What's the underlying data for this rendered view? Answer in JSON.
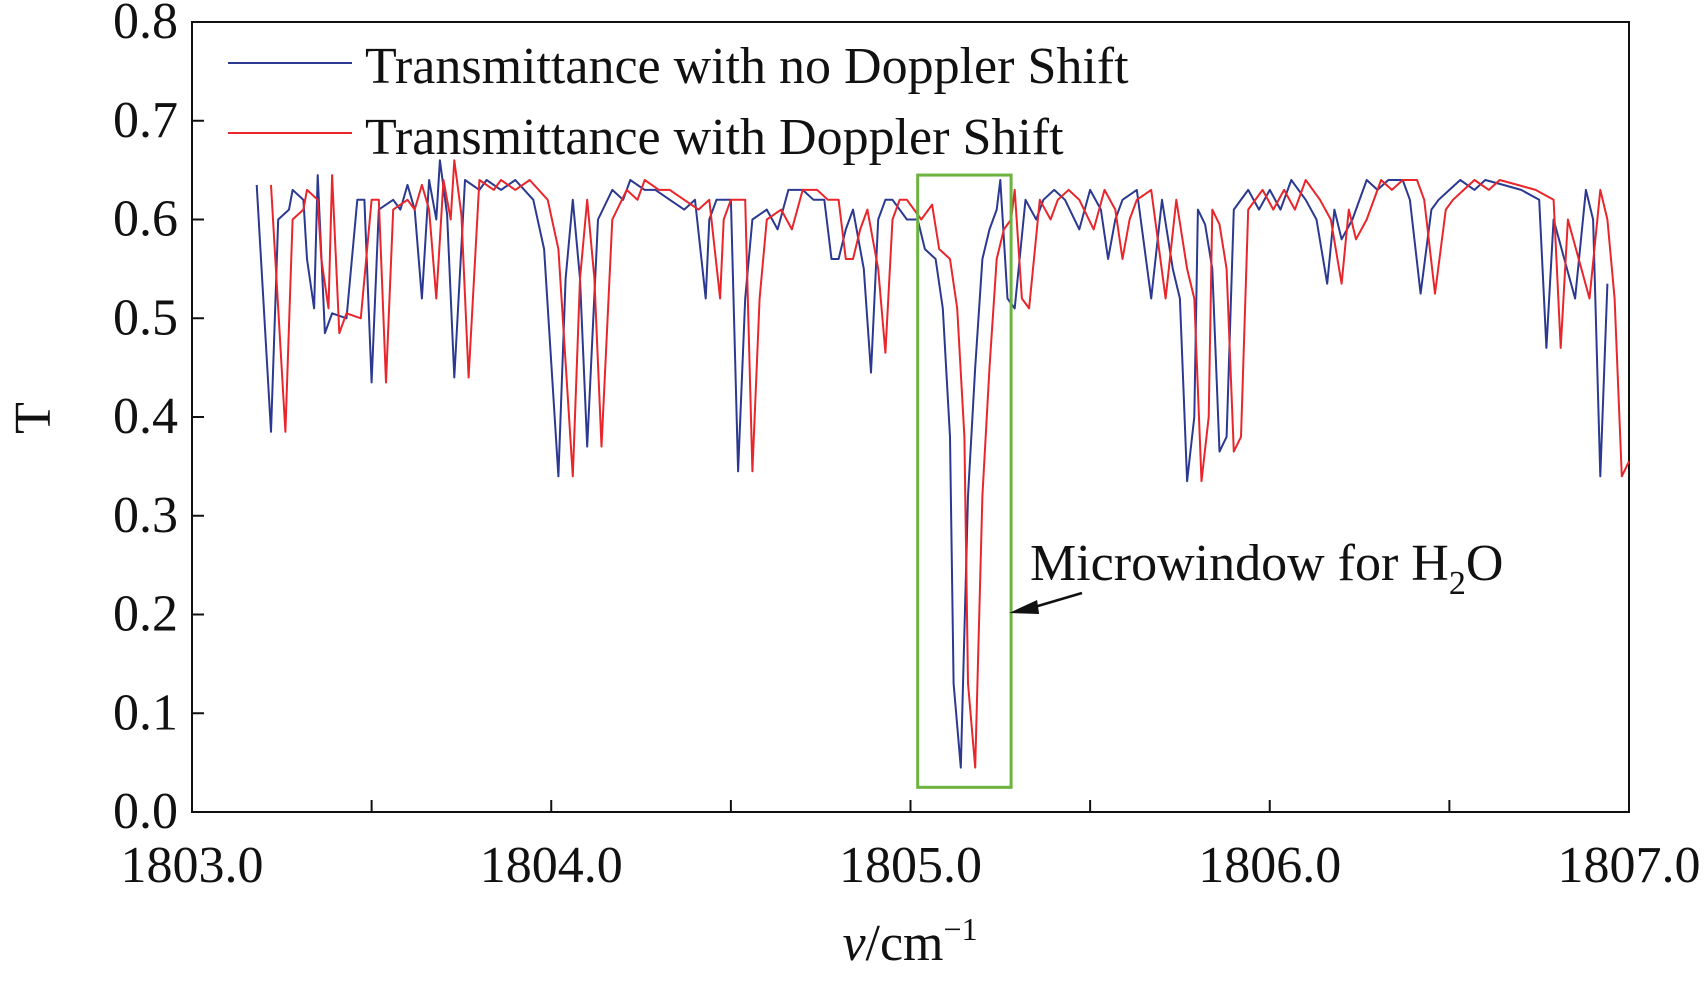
{
  "chart_data": {
    "type": "line",
    "xlabel": "v/cm",
    "xlabel_superscript": "−1",
    "ylabel": "T",
    "xlim": [
      1803.0,
      1807.0
    ],
    "ylim": [
      0.0,
      0.8
    ],
    "x_ticks": [
      "1803.0",
      "1804.0",
      "1805.0",
      "1806.0",
      "1807.0"
    ],
    "y_ticks": [
      "0.0",
      "0.1",
      "0.2",
      "0.3",
      "0.4",
      "0.5",
      "0.6",
      "0.7",
      "0.8"
    ],
    "legend_position": "top-left",
    "grid": false,
    "series": [
      {
        "name": "Transmittance with no Doppler Shift",
        "color": "#2b3990",
        "points": [
          [
            1803.18,
            0.635
          ],
          [
            1803.22,
            0.385
          ],
          [
            1803.24,
            0.6
          ],
          [
            1803.27,
            0.61
          ],
          [
            1803.28,
            0.63
          ],
          [
            1803.31,
            0.62
          ],
          [
            1803.32,
            0.56
          ],
          [
            1803.34,
            0.51
          ],
          [
            1803.35,
            0.645
          ],
          [
            1803.37,
            0.485
          ],
          [
            1803.39,
            0.505
          ],
          [
            1803.43,
            0.5
          ],
          [
            1803.46,
            0.62
          ],
          [
            1803.48,
            0.62
          ],
          [
            1803.5,
            0.435
          ],
          [
            1803.52,
            0.61
          ],
          [
            1803.56,
            0.62
          ],
          [
            1803.58,
            0.61
          ],
          [
            1803.6,
            0.635
          ],
          [
            1803.62,
            0.61
          ],
          [
            1803.64,
            0.52
          ],
          [
            1803.66,
            0.64
          ],
          [
            1803.68,
            0.6
          ],
          [
            1803.69,
            0.66
          ],
          [
            1803.71,
            0.605
          ],
          [
            1803.73,
            0.44
          ],
          [
            1803.76,
            0.64
          ],
          [
            1803.8,
            0.63
          ],
          [
            1803.82,
            0.64
          ],
          [
            1803.86,
            0.63
          ],
          [
            1803.9,
            0.64
          ],
          [
            1803.95,
            0.62
          ],
          [
            1803.98,
            0.57
          ],
          [
            1804.02,
            0.34
          ],
          [
            1804.04,
            0.54
          ],
          [
            1804.06,
            0.62
          ],
          [
            1804.08,
            0.54
          ],
          [
            1804.1,
            0.37
          ],
          [
            1804.13,
            0.6
          ],
          [
            1804.17,
            0.63
          ],
          [
            1804.2,
            0.62
          ],
          [
            1804.22,
            0.64
          ],
          [
            1804.26,
            0.63
          ],
          [
            1804.29,
            0.63
          ],
          [
            1804.33,
            0.62
          ],
          [
            1804.37,
            0.61
          ],
          [
            1804.4,
            0.62
          ],
          [
            1804.43,
            0.52
          ],
          [
            1804.44,
            0.6
          ],
          [
            1804.46,
            0.62
          ],
          [
            1804.5,
            0.62
          ],
          [
            1804.52,
            0.345
          ],
          [
            1804.54,
            0.52
          ],
          [
            1804.56,
            0.6
          ],
          [
            1804.6,
            0.61
          ],
          [
            1804.63,
            0.59
          ],
          [
            1804.66,
            0.63
          ],
          [
            1804.7,
            0.63
          ],
          [
            1804.73,
            0.62
          ],
          [
            1804.76,
            0.62
          ],
          [
            1804.78,
            0.56
          ],
          [
            1804.8,
            0.56
          ],
          [
            1804.82,
            0.59
          ],
          [
            1804.84,
            0.61
          ],
          [
            1804.87,
            0.55
          ],
          [
            1804.89,
            0.445
          ],
          [
            1804.91,
            0.6
          ],
          [
            1804.93,
            0.62
          ],
          [
            1804.95,
            0.62
          ],
          [
            1804.99,
            0.6
          ],
          [
            1805.02,
            0.6
          ],
          [
            1805.04,
            0.57
          ],
          [
            1805.07,
            0.56
          ],
          [
            1805.09,
            0.51
          ],
          [
            1805.11,
            0.38
          ],
          [
            1805.12,
            0.13
          ],
          [
            1805.14,
            0.045
          ],
          [
            1805.16,
            0.32
          ],
          [
            1805.18,
            0.45
          ],
          [
            1805.2,
            0.56
          ],
          [
            1805.22,
            0.59
          ],
          [
            1805.24,
            0.61
          ],
          [
            1805.25,
            0.64
          ],
          [
            1805.27,
            0.52
          ],
          [
            1805.29,
            0.51
          ],
          [
            1805.32,
            0.62
          ],
          [
            1805.35,
            0.6
          ],
          [
            1805.37,
            0.62
          ],
          [
            1805.4,
            0.63
          ],
          [
            1805.43,
            0.62
          ],
          [
            1805.47,
            0.59
          ],
          [
            1805.5,
            0.63
          ],
          [
            1805.53,
            0.61
          ],
          [
            1805.55,
            0.56
          ],
          [
            1805.57,
            0.6
          ],
          [
            1805.59,
            0.62
          ],
          [
            1805.63,
            0.63
          ],
          [
            1805.67,
            0.52
          ],
          [
            1805.7,
            0.62
          ],
          [
            1805.73,
            0.55
          ],
          [
            1805.75,
            0.52
          ],
          [
            1805.77,
            0.335
          ],
          [
            1805.79,
            0.4
          ],
          [
            1805.8,
            0.61
          ],
          [
            1805.82,
            0.595
          ],
          [
            1805.84,
            0.55
          ],
          [
            1805.86,
            0.365
          ],
          [
            1805.88,
            0.38
          ],
          [
            1805.9,
            0.61
          ],
          [
            1805.94,
            0.63
          ],
          [
            1805.97,
            0.61
          ],
          [
            1806.0,
            0.63
          ],
          [
            1806.03,
            0.61
          ],
          [
            1806.06,
            0.64
          ],
          [
            1806.1,
            0.62
          ],
          [
            1806.13,
            0.6
          ],
          [
            1806.16,
            0.535
          ],
          [
            1806.18,
            0.61
          ],
          [
            1806.2,
            0.58
          ],
          [
            1806.23,
            0.6
          ],
          [
            1806.27,
            0.64
          ],
          [
            1806.3,
            0.63
          ],
          [
            1806.33,
            0.64
          ],
          [
            1806.37,
            0.64
          ],
          [
            1806.39,
            0.62
          ],
          [
            1806.42,
            0.525
          ],
          [
            1806.45,
            0.61
          ],
          [
            1806.47,
            0.62
          ],
          [
            1806.5,
            0.63
          ],
          [
            1806.53,
            0.64
          ],
          [
            1806.57,
            0.63
          ],
          [
            1806.6,
            0.64
          ],
          [
            1806.65,
            0.635
          ],
          [
            1806.7,
            0.63
          ],
          [
            1806.75,
            0.62
          ],
          [
            1806.77,
            0.47
          ],
          [
            1806.79,
            0.6
          ],
          [
            1806.82,
            0.56
          ],
          [
            1806.85,
            0.52
          ],
          [
            1806.88,
            0.63
          ],
          [
            1806.9,
            0.6
          ],
          [
            1806.92,
            0.34
          ],
          [
            1806.94,
            0.535
          ]
        ]
      },
      {
        "name": "Transmittance with Doppler Shift",
        "color": "#e8262b",
        "points": [
          [
            1803.22,
            0.635
          ],
          [
            1803.26,
            0.385
          ],
          [
            1803.28,
            0.6
          ],
          [
            1803.31,
            0.61
          ],
          [
            1803.32,
            0.63
          ],
          [
            1803.35,
            0.62
          ],
          [
            1803.36,
            0.56
          ],
          [
            1803.38,
            0.51
          ],
          [
            1803.39,
            0.645
          ],
          [
            1803.41,
            0.485
          ],
          [
            1803.43,
            0.505
          ],
          [
            1803.47,
            0.5
          ],
          [
            1803.5,
            0.62
          ],
          [
            1803.52,
            0.62
          ],
          [
            1803.54,
            0.435
          ],
          [
            1803.56,
            0.61
          ],
          [
            1803.6,
            0.62
          ],
          [
            1803.62,
            0.61
          ],
          [
            1803.64,
            0.635
          ],
          [
            1803.66,
            0.61
          ],
          [
            1803.68,
            0.52
          ],
          [
            1803.7,
            0.64
          ],
          [
            1803.72,
            0.6
          ],
          [
            1803.73,
            0.66
          ],
          [
            1803.75,
            0.605
          ],
          [
            1803.77,
            0.44
          ],
          [
            1803.8,
            0.64
          ],
          [
            1803.84,
            0.63
          ],
          [
            1803.86,
            0.64
          ],
          [
            1803.9,
            0.63
          ],
          [
            1803.94,
            0.64
          ],
          [
            1803.99,
            0.62
          ],
          [
            1804.02,
            0.57
          ],
          [
            1804.06,
            0.34
          ],
          [
            1804.08,
            0.54
          ],
          [
            1804.1,
            0.62
          ],
          [
            1804.12,
            0.54
          ],
          [
            1804.14,
            0.37
          ],
          [
            1804.17,
            0.6
          ],
          [
            1804.21,
            0.63
          ],
          [
            1804.24,
            0.62
          ],
          [
            1804.26,
            0.64
          ],
          [
            1804.3,
            0.63
          ],
          [
            1804.33,
            0.63
          ],
          [
            1804.37,
            0.62
          ],
          [
            1804.41,
            0.61
          ],
          [
            1804.44,
            0.62
          ],
          [
            1804.47,
            0.52
          ],
          [
            1804.48,
            0.6
          ],
          [
            1804.5,
            0.62
          ],
          [
            1804.54,
            0.62
          ],
          [
            1804.56,
            0.345
          ],
          [
            1804.58,
            0.52
          ],
          [
            1804.6,
            0.6
          ],
          [
            1804.64,
            0.61
          ],
          [
            1804.67,
            0.59
          ],
          [
            1804.7,
            0.63
          ],
          [
            1804.74,
            0.63
          ],
          [
            1804.77,
            0.62
          ],
          [
            1804.8,
            0.62
          ],
          [
            1804.82,
            0.56
          ],
          [
            1804.84,
            0.56
          ],
          [
            1804.86,
            0.59
          ],
          [
            1804.88,
            0.61
          ],
          [
            1804.91,
            0.55
          ],
          [
            1804.93,
            0.465
          ],
          [
            1804.95,
            0.6
          ],
          [
            1804.97,
            0.62
          ],
          [
            1804.99,
            0.62
          ],
          [
            1805.03,
            0.6
          ],
          [
            1805.06,
            0.615
          ],
          [
            1805.08,
            0.57
          ],
          [
            1805.11,
            0.56
          ],
          [
            1805.13,
            0.51
          ],
          [
            1805.15,
            0.38
          ],
          [
            1805.16,
            0.13
          ],
          [
            1805.18,
            0.045
          ],
          [
            1805.2,
            0.32
          ],
          [
            1805.22,
            0.45
          ],
          [
            1805.24,
            0.56
          ],
          [
            1805.26,
            0.59
          ],
          [
            1805.28,
            0.6
          ],
          [
            1805.29,
            0.63
          ],
          [
            1805.31,
            0.52
          ],
          [
            1805.33,
            0.51
          ],
          [
            1805.36,
            0.62
          ],
          [
            1805.39,
            0.6
          ],
          [
            1805.41,
            0.62
          ],
          [
            1805.44,
            0.63
          ],
          [
            1805.47,
            0.62
          ],
          [
            1805.51,
            0.59
          ],
          [
            1805.54,
            0.63
          ],
          [
            1805.57,
            0.61
          ],
          [
            1805.59,
            0.56
          ],
          [
            1805.61,
            0.6
          ],
          [
            1805.63,
            0.62
          ],
          [
            1805.67,
            0.63
          ],
          [
            1805.71,
            0.52
          ],
          [
            1805.74,
            0.62
          ],
          [
            1805.77,
            0.55
          ],
          [
            1805.79,
            0.52
          ],
          [
            1805.81,
            0.335
          ],
          [
            1805.83,
            0.4
          ],
          [
            1805.84,
            0.61
          ],
          [
            1805.86,
            0.595
          ],
          [
            1805.88,
            0.55
          ],
          [
            1805.9,
            0.365
          ],
          [
            1805.92,
            0.38
          ],
          [
            1805.94,
            0.61
          ],
          [
            1805.98,
            0.63
          ],
          [
            1806.01,
            0.61
          ],
          [
            1806.04,
            0.63
          ],
          [
            1806.07,
            0.61
          ],
          [
            1806.1,
            0.64
          ],
          [
            1806.14,
            0.62
          ],
          [
            1806.17,
            0.6
          ],
          [
            1806.2,
            0.535
          ],
          [
            1806.22,
            0.61
          ],
          [
            1806.24,
            0.58
          ],
          [
            1806.27,
            0.6
          ],
          [
            1806.31,
            0.64
          ],
          [
            1806.34,
            0.63
          ],
          [
            1806.37,
            0.64
          ],
          [
            1806.41,
            0.64
          ],
          [
            1806.43,
            0.62
          ],
          [
            1806.46,
            0.525
          ],
          [
            1806.49,
            0.61
          ],
          [
            1806.51,
            0.62
          ],
          [
            1806.54,
            0.63
          ],
          [
            1806.57,
            0.64
          ],
          [
            1806.61,
            0.63
          ],
          [
            1806.64,
            0.64
          ],
          [
            1806.69,
            0.635
          ],
          [
            1806.74,
            0.63
          ],
          [
            1806.79,
            0.62
          ],
          [
            1806.81,
            0.47
          ],
          [
            1806.83,
            0.6
          ],
          [
            1806.86,
            0.56
          ],
          [
            1806.89,
            0.52
          ],
          [
            1806.92,
            0.63
          ],
          [
            1806.94,
            0.6
          ],
          [
            1806.96,
            0.52
          ],
          [
            1806.98,
            0.34
          ],
          [
            1807.0,
            0.355
          ]
        ]
      }
    ],
    "annotation": {
      "text_main": "Microwindow for H",
      "text_sub": "2",
      "text_tail": "O",
      "box_x": [
        1805.02,
        1805.28
      ],
      "box_y": [
        0.025,
        0.645
      ],
      "box_color": "#6db33f"
    }
  }
}
